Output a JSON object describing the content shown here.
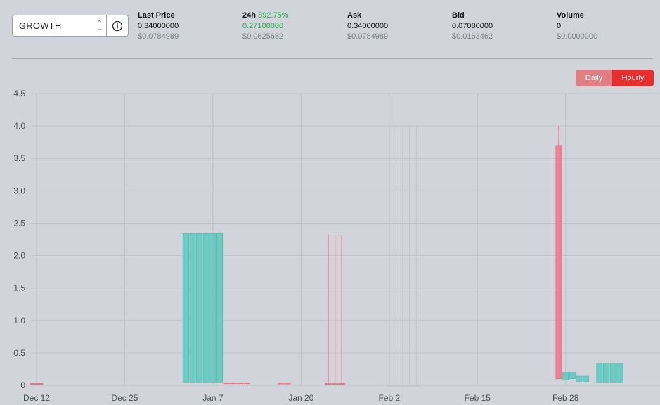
{
  "market": {
    "selected": "GROWTH"
  },
  "stats": {
    "last_price": {
      "label": "Last Price",
      "value": "0.34000000",
      "usd": "$0.0784989"
    },
    "change_24h": {
      "label": "24h",
      "pct": "392.75%",
      "value": "0.27100000",
      "usd": "$0.0625682"
    },
    "ask": {
      "label": "Ask",
      "value": "0.34000000",
      "usd": "$0.0784989"
    },
    "bid": {
      "label": "Bid",
      "value": "0.07080000",
      "usd": "$0.0163462"
    },
    "volume": {
      "label": "Volume",
      "value": "0",
      "usd": "$0.0000000"
    }
  },
  "interval_toggle": {
    "daily": "Daily",
    "hourly": "Hourly",
    "active": "Hourly"
  },
  "colors": {
    "up": "#6ccbc4",
    "down": "#ef7f93",
    "accent": "#e52e2e",
    "green_text": "#22b14c"
  },
  "chart_data": {
    "type": "candlestick",
    "title": "",
    "xlabel": "",
    "ylabel": "",
    "ylim": [
      0,
      4.5
    ],
    "y_ticks": [
      "0",
      "0.5",
      "1.0",
      "1.5",
      "2.0",
      "2.5",
      "3.0",
      "3.5",
      "4.0",
      "4.5"
    ],
    "x_ticks": [
      "Dec 12",
      "Dec 25",
      "Jan 7",
      "Jan 20",
      "Feb 2",
      "Feb 15",
      "Feb 28"
    ],
    "grid": true,
    "candles": [
      {
        "date": "Dec 12",
        "open": 0.03,
        "close": 0.02,
        "high": 0.03,
        "low": 0.02
      },
      {
        "date": "Dec 12",
        "open": 0.03,
        "close": 0.02,
        "high": 0.03,
        "low": 0.02
      },
      {
        "date": "Jan 3",
        "open": 0.05,
        "close": 2.34,
        "high": 2.34,
        "low": 0.05
      },
      {
        "date": "Jan 4",
        "open": 0.05,
        "close": 2.34,
        "high": 2.34,
        "low": 0.05
      },
      {
        "date": "Jan 5",
        "open": 0.05,
        "close": 2.34,
        "high": 2.34,
        "low": 0.05
      },
      {
        "date": "Jan 6",
        "open": 0.05,
        "close": 2.34,
        "high": 2.34,
        "low": 0.05
      },
      {
        "date": "Jan 7",
        "open": 0.05,
        "close": 2.34,
        "high": 2.34,
        "low": 0.05
      },
      {
        "date": "Jan 8",
        "open": 0.05,
        "close": 2.34,
        "high": 2.34,
        "low": 0.05
      },
      {
        "date": "Jan 9",
        "open": 0.04,
        "close": 0.03,
        "high": 0.04,
        "low": 0.03
      },
      {
        "date": "Jan 10",
        "open": 0.04,
        "close": 0.03,
        "high": 0.04,
        "low": 0.03
      },
      {
        "date": "Jan 11",
        "open": 0.04,
        "close": 0.03,
        "high": 0.04,
        "low": 0.03
      },
      {
        "date": "Jan 12",
        "open": 0.04,
        "close": 0.03,
        "high": 0.04,
        "low": 0.03
      },
      {
        "date": "Jan 17",
        "open": 0.04,
        "close": 0.02,
        "high": 0.04,
        "low": 0.02
      },
      {
        "date": "Jan 18",
        "open": 0.04,
        "close": 0.02,
        "high": 0.04,
        "low": 0.02
      },
      {
        "date": "Jan 24",
        "open": 0.03,
        "close": 0.02,
        "high": 2.32,
        "low": 0.02
      },
      {
        "date": "Jan 25",
        "open": 0.03,
        "close": 0.02,
        "high": 2.32,
        "low": 0.02
      },
      {
        "date": "Jan 26",
        "open": 0.03,
        "close": 0.02,
        "high": 2.32,
        "low": 0.02
      },
      {
        "date": "Feb 27",
        "open": 3.7,
        "close": 0.1,
        "high": 4.0,
        "low": 0.1
      },
      {
        "date": "Feb 28",
        "open": 0.08,
        "close": 0.2,
        "high": 0.2,
        "low": 0.08
      },
      {
        "date": "Mar 1",
        "open": 0.1,
        "close": 0.2,
        "high": 0.2,
        "low": 0.1
      },
      {
        "date": "Mar 2",
        "open": 0.06,
        "close": 0.14,
        "high": 0.14,
        "low": 0.06
      },
      {
        "date": "Mar 3",
        "open": 0.06,
        "close": 0.14,
        "high": 0.14,
        "low": 0.06
      },
      {
        "date": "Mar 5",
        "open": 0.05,
        "close": 0.34,
        "high": 0.34,
        "low": 0.05
      },
      {
        "date": "Mar 6",
        "open": 0.05,
        "close": 0.34,
        "high": 0.34,
        "low": 0.05
      },
      {
        "date": "Mar 7",
        "open": 0.05,
        "close": 0.34,
        "high": 0.34,
        "low": 0.05
      },
      {
        "date": "Mar 8",
        "open": 0.05,
        "close": 0.34,
        "high": 0.34,
        "low": 0.05
      }
    ],
    "faint_candles": [
      {
        "date": "Feb 2",
        "open": 0.0,
        "close": 0.0,
        "high": 4.0,
        "low": 0.0
      },
      {
        "date": "Feb 3",
        "open": 0.0,
        "close": 0.0,
        "high": 4.0,
        "low": 0.0
      },
      {
        "date": "Feb 4",
        "open": 0.0,
        "close": 0.0,
        "high": 4.0,
        "low": 0.0
      },
      {
        "date": "Feb 5",
        "open": 0.0,
        "close": 0.0,
        "high": 4.0,
        "low": 0.0
      },
      {
        "date": "Feb 6",
        "open": 0.0,
        "close": 0.0,
        "high": 4.0,
        "low": 0.0
      }
    ]
  }
}
